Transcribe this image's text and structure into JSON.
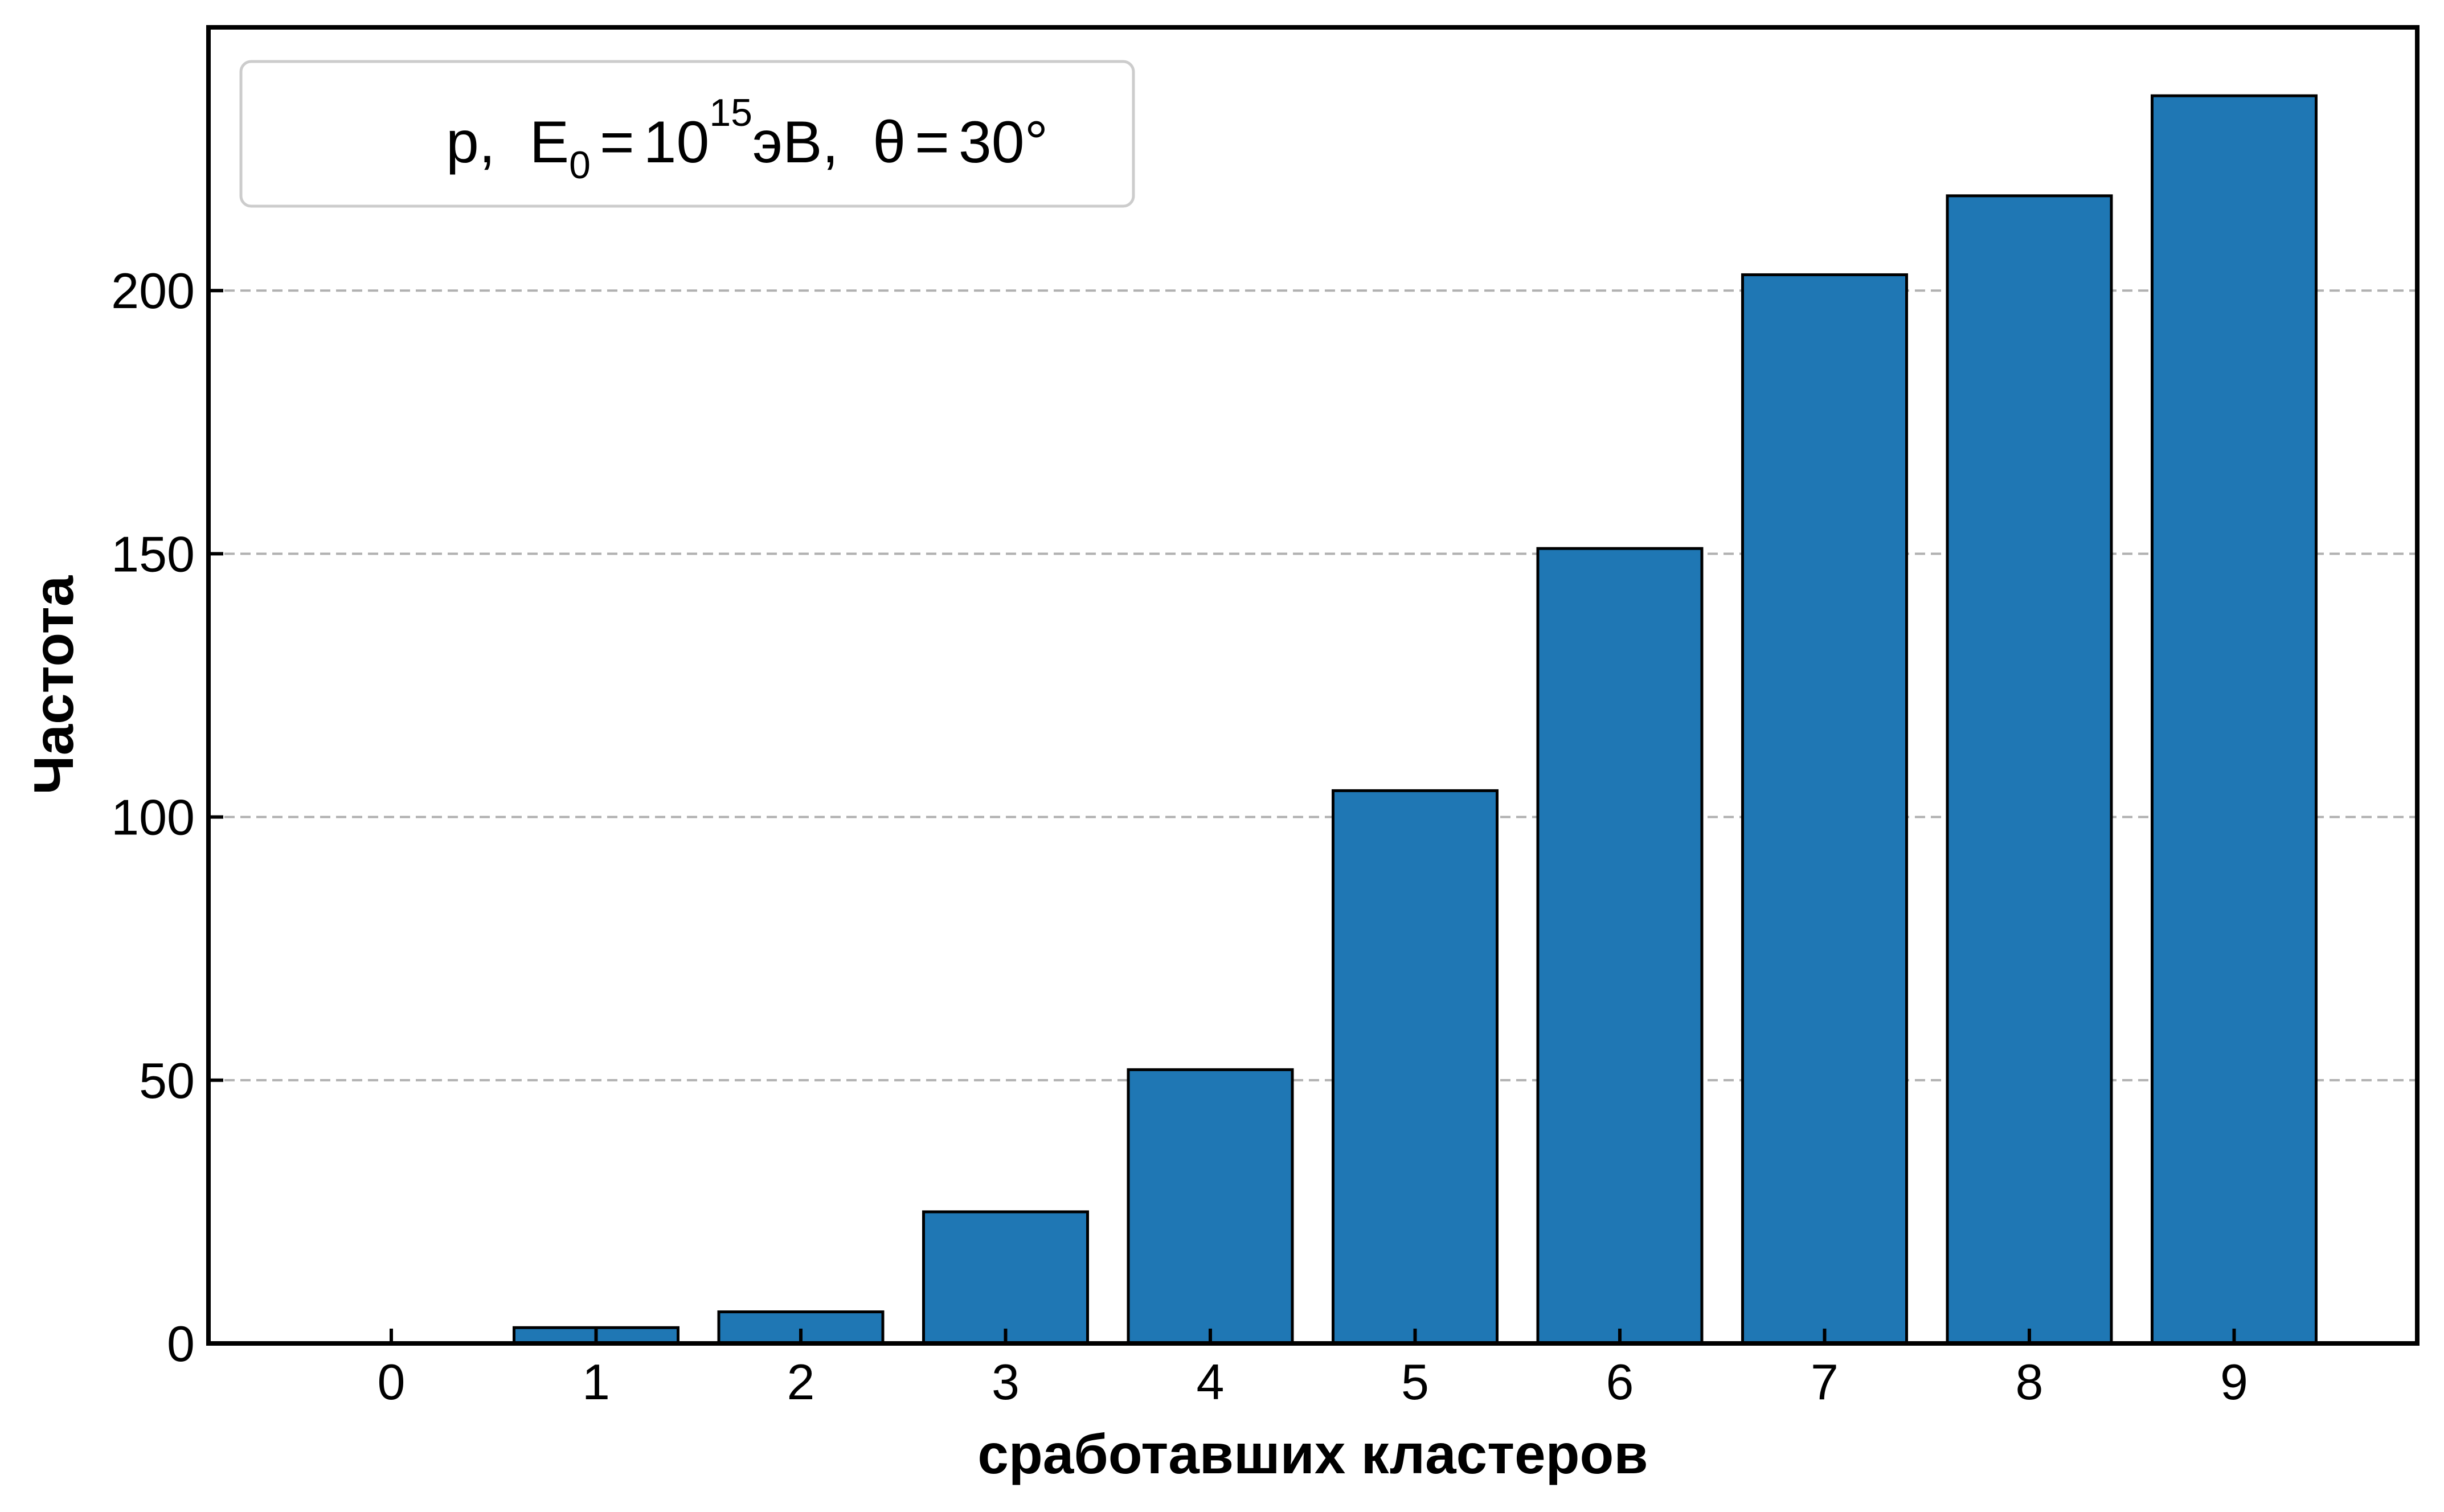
{
  "chart_data": {
    "type": "bar",
    "categories": [
      "0",
      "1",
      "2",
      "3",
      "4",
      "5",
      "6",
      "7",
      "8",
      "9"
    ],
    "values": [
      0,
      3,
      6,
      25,
      52,
      105,
      151,
      203,
      218,
      237
    ],
    "xlabel": "сработавших кластеров",
    "ylabel": "Частота",
    "ylim": [
      0,
      250
    ],
    "yticks": [
      0,
      50,
      100,
      150,
      200
    ],
    "ytick_labels": [
      "0",
      "50",
      "100",
      "150",
      "200"
    ],
    "grid": {
      "y": true,
      "style": "dashed"
    },
    "legend": {
      "placement": "top-left",
      "p": "p,",
      "E": "E",
      "E_sub": "0",
      "eq1": "=",
      "base": "10",
      "exp": "15",
      "unit": "эВ,",
      "theta": "θ",
      "eq2": "=",
      "angle": "30°"
    },
    "colors": {
      "bar": "#1f77b4",
      "edge": "#000000",
      "grid": "#b0b0b0"
    }
  }
}
